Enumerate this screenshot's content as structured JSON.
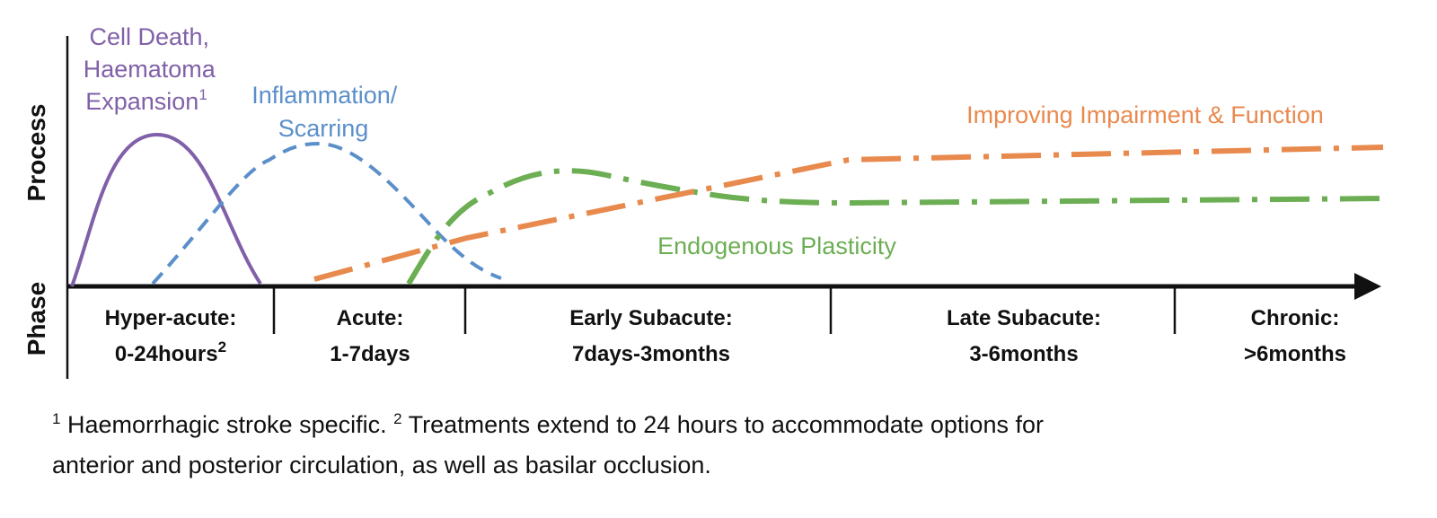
{
  "axis": {
    "y_title_top": "Process",
    "y_title_bottom": "Phase"
  },
  "curves": {
    "cell_death": {
      "label_lines": [
        "Cell Death,",
        "Haematoma",
        "Expansion"
      ],
      "label_sup": "1",
      "color": "#8060a8"
    },
    "inflammation": {
      "label_lines": [
        "Inflammation/",
        "Scarring"
      ],
      "color": "#5b8fc9"
    },
    "plasticity": {
      "label": "Endogenous Plasticity",
      "color": "#6cae53"
    },
    "improving": {
      "label": "Improving Impairment & Function",
      "color": "#e8894e"
    }
  },
  "phases": [
    {
      "name": "Hyper-acute:",
      "range": "0-24hours",
      "sup": "2"
    },
    {
      "name": "Acute:",
      "range": "1-7days"
    },
    {
      "name": "Early Subacute:",
      "range": "7days-3months"
    },
    {
      "name": "Late Subacute:",
      "range": "3-6months"
    },
    {
      "name": "Chronic:",
      "range": ">6months"
    }
  ],
  "footnote": {
    "mark1": "1",
    "text1": " Haemorrhagic stroke specific. ",
    "mark2": "2",
    "text2": " Treatments extend to 24 hours to accommodate options for",
    "line2": "anterior and posterior circulation, as well as basilar occlusion."
  }
}
